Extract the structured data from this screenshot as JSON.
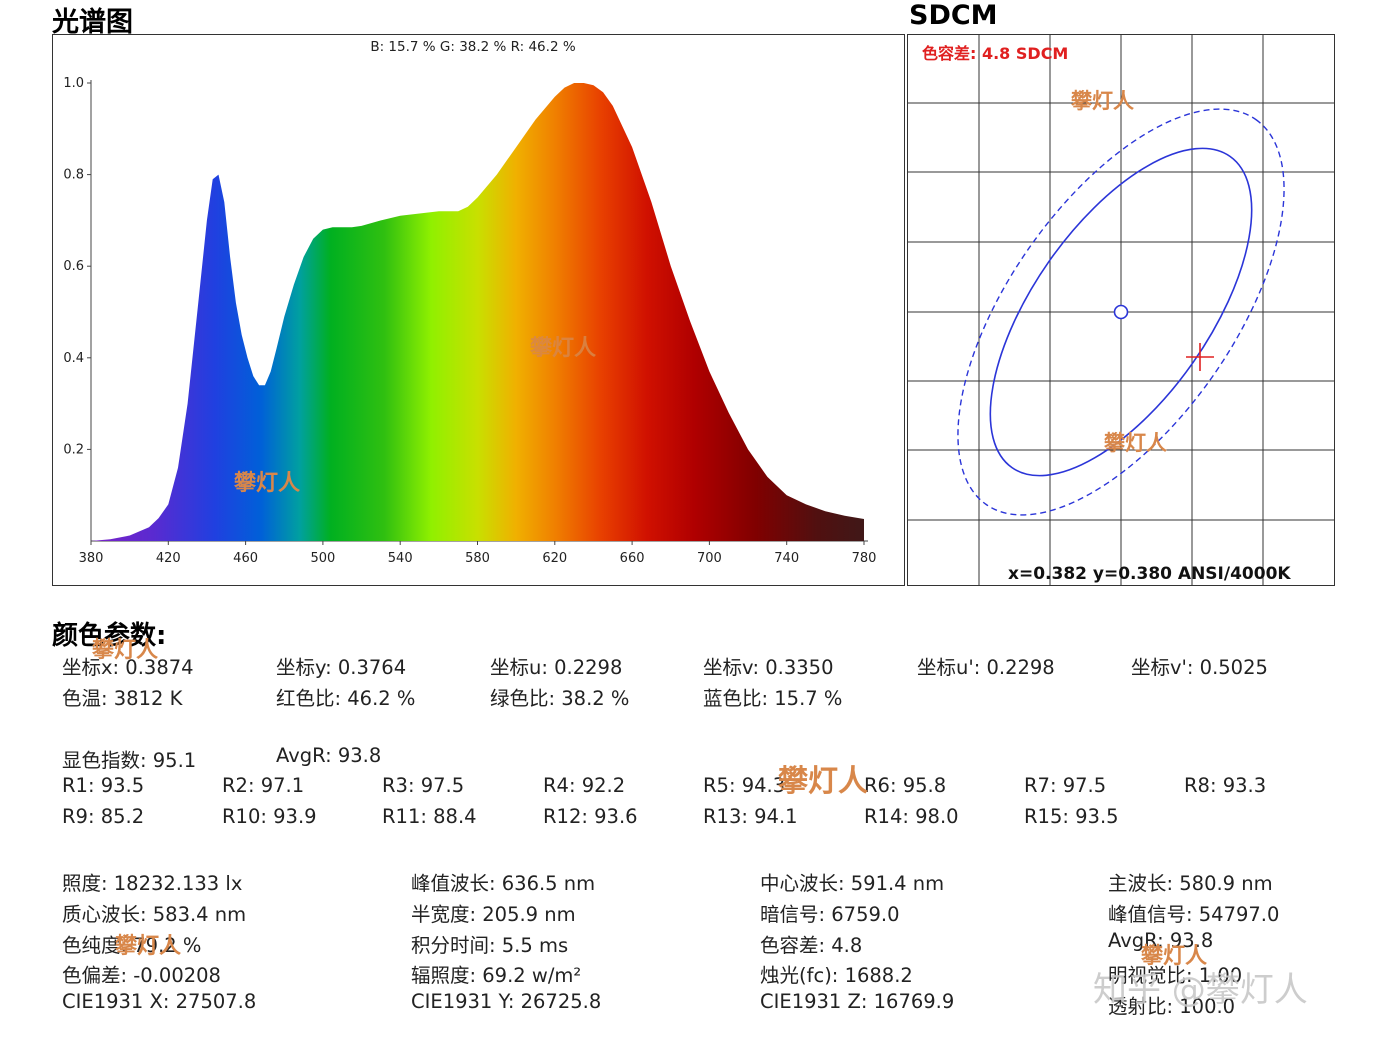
{
  "spectrum": {
    "title": "光谱图",
    "ratio_label": "B: 15.7 %  G: 38.2 %  R: 46.2 %"
  },
  "sdcm": {
    "title": "SDCM",
    "tolerance_label": "色容差: 4.8 SDCM",
    "coord_label": "x=0.382 y=0.380 ANSI/4000K"
  },
  "params_title": "颜色参数:",
  "params": {
    "row1": [
      "坐标x: 0.3874",
      "坐标y: 0.3764",
      "坐标u: 0.2298",
      "坐标v: 0.3350",
      "坐标u': 0.2298",
      "坐标v': 0.5025"
    ],
    "row2": [
      "色温: 3812 K",
      "红色比: 46.2 %",
      "绿色比: 38.2 %",
      "蓝色比: 15.7 %"
    ],
    "cri": [
      "显色指数: 95.1",
      "AvgR: 93.8"
    ],
    "r_row1": [
      "R1: 93.5",
      "R2: 97.1",
      "R3: 97.5",
      "R4: 92.2",
      "R5: 94.3",
      "R6: 95.8",
      "R7: 97.5",
      "R8: 93.3"
    ],
    "r_row2": [
      "R9: 85.2",
      "R10: 93.9",
      "R11: 88.4",
      "R12: 93.6",
      "R13: 94.1",
      "R14: 98.0",
      "R15: 93.5"
    ],
    "grid": [
      [
        "照度: 18232.133 lx",
        "峰值波长: 636.5 nm",
        "中心波长: 591.4 nm",
        "主波长: 580.9 nm"
      ],
      [
        "质心波长: 583.4 nm",
        "半宽度: 205.9 nm",
        "暗信号: 6759.0",
        "峰值信号: 54797.0"
      ],
      [
        "色纯度: 79.2 %",
        "积分时间: 5.5 ms",
        "色容差: 4.8",
        "AvgR: 93.8"
      ],
      [
        "色偏差: -0.00208",
        "辐照度: 69.2 w/m²",
        "烛光(fc): 1688.2",
        "明视觉比: 1.00"
      ],
      [
        "CIE1931 X: 27507.8",
        "CIE1931 Y: 26725.8",
        "CIE1931 Z: 16769.9",
        "透射比: 100.0"
      ]
    ]
  },
  "watermark_text": "攀灯人",
  "credit": "知乎 @攀灯人",
  "chart_data": [
    {
      "type": "area",
      "title": "光谱图",
      "xlabel": "",
      "ylabel": "",
      "xlim": [
        380,
        780
      ],
      "ylim": [
        0,
        1.0
      ],
      "xticks": [
        380,
        420,
        460,
        500,
        540,
        580,
        620,
        660,
        700,
        740,
        780
      ],
      "yticks": [
        0.2,
        0.4,
        0.6,
        0.8,
        1.0
      ],
      "x": [
        380,
        390,
        400,
        410,
        415,
        420,
        425,
        430,
        435,
        440,
        443,
        446,
        449,
        452,
        455,
        458,
        461,
        464,
        467,
        470,
        473,
        476,
        480,
        485,
        490,
        495,
        500,
        505,
        510,
        515,
        520,
        530,
        540,
        550,
        560,
        570,
        575,
        580,
        590,
        600,
        610,
        620,
        625,
        630,
        635,
        640,
        645,
        650,
        660,
        670,
        680,
        690,
        700,
        710,
        720,
        730,
        740,
        750,
        760,
        770,
        780
      ],
      "values": [
        0.0,
        0.004,
        0.012,
        0.03,
        0.05,
        0.08,
        0.16,
        0.3,
        0.5,
        0.7,
        0.79,
        0.8,
        0.74,
        0.62,
        0.52,
        0.45,
        0.4,
        0.36,
        0.34,
        0.34,
        0.37,
        0.42,
        0.49,
        0.56,
        0.62,
        0.66,
        0.68,
        0.685,
        0.685,
        0.685,
        0.688,
        0.7,
        0.71,
        0.715,
        0.72,
        0.72,
        0.73,
        0.75,
        0.8,
        0.86,
        0.92,
        0.97,
        0.99,
        1.0,
        1.0,
        0.995,
        0.98,
        0.95,
        0.86,
        0.74,
        0.6,
        0.48,
        0.37,
        0.28,
        0.2,
        0.14,
        0.1,
        0.08,
        0.065,
        0.055,
        0.048
      ],
      "annotations": [
        "B: 15.7 %  G: 38.2 %  R: 46.2 %"
      ]
    },
    {
      "type": "scatter",
      "title": "SDCM",
      "center": {
        "x": 0.382,
        "y": 0.38
      },
      "measured": {
        "x": 0.3874,
        "y": 0.3764
      },
      "sdcm": 4.8,
      "standard": "ANSI/4000K",
      "ellipses": [
        "inner",
        "outer-dashed"
      ],
      "grid": true
    }
  ],
  "colors": {
    "ellipse": "#2b35d8",
    "marker": "#e02020",
    "tolerance_text": "#e02020",
    "watermark": "#d8874a"
  }
}
